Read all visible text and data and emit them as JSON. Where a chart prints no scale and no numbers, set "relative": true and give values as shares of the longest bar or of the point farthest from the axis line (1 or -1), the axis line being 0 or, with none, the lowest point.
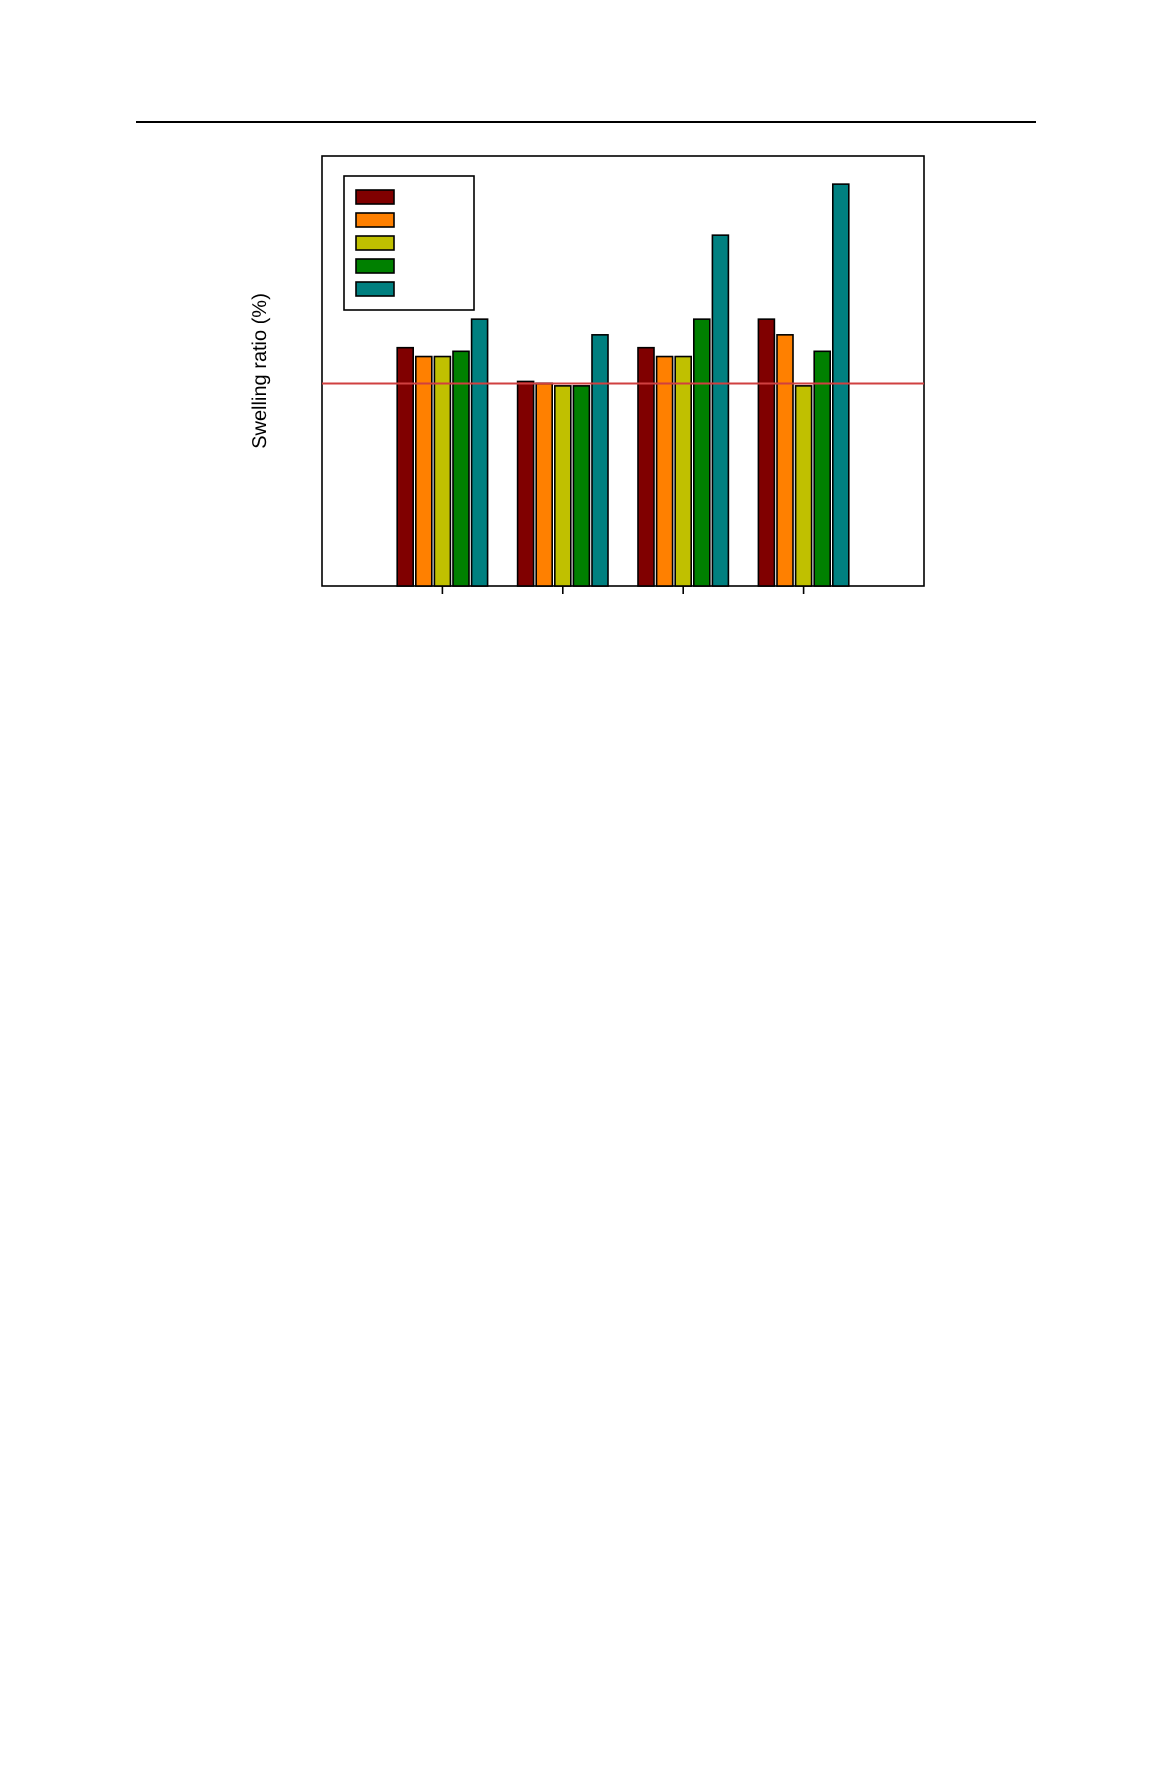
{
  "chart_data": {
    "type": "bar",
    "ylabel": "Swelling ratio (%)",
    "relative": true,
    "categories": [
      null,
      null,
      null,
      null
    ],
    "series": [
      {
        "color": "#800000",
        "values": [
          0.593,
          0.509,
          0.593,
          0.664
        ]
      },
      {
        "color": "#ff8000",
        "values": [
          0.571,
          0.504,
          0.571,
          0.625
        ]
      },
      {
        "color": "#c0c000",
        "values": [
          0.571,
          0.498,
          0.571,
          0.498
        ]
      },
      {
        "color": "#008000",
        "values": [
          0.584,
          0.498,
          0.664,
          0.584
        ]
      },
      {
        "color": "#008080",
        "values": [
          0.664,
          0.625,
          0.873,
          1
        ]
      }
    ],
    "ref_lines": [
      {
        "axis": "y",
        "value": 0.504,
        "color": "#d04040"
      }
    ]
  }
}
